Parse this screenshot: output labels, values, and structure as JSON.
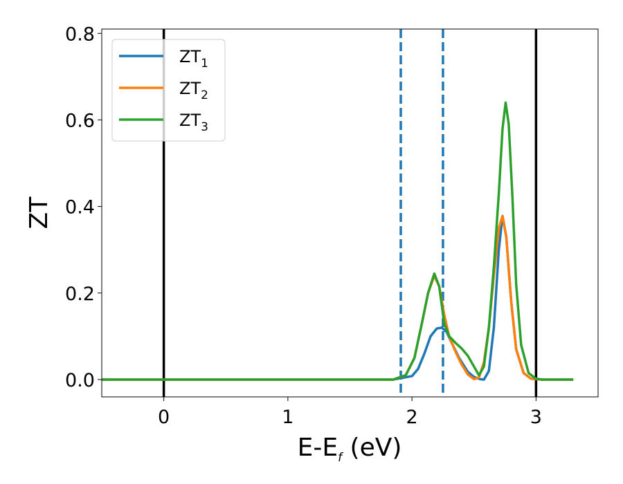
{
  "chart_data": {
    "type": "line",
    "title": "",
    "xlabel": "E-E",
    "xlabel_sub": "f",
    "xlabel_unit": " (eV)",
    "ylabel": "ZT",
    "xlim": [
      -0.5,
      3.5
    ],
    "ylim": [
      -0.04,
      0.81
    ],
    "xticks": [
      0,
      1,
      2,
      3
    ],
    "xtick_labels": [
      "0",
      "1",
      "2",
      "3"
    ],
    "yticks": [
      0.0,
      0.2,
      0.4,
      0.6,
      0.8
    ],
    "ytick_labels": [
      "0.0",
      "0.2",
      "0.4",
      "0.6",
      "0.8"
    ],
    "grid": false,
    "legend_position": "top-left",
    "vertical_lines": [
      {
        "x": 0.0,
        "style": "solid",
        "color": "#000000"
      },
      {
        "x": 3.0,
        "style": "solid",
        "color": "#000000"
      },
      {
        "x": 1.91,
        "style": "dashed",
        "color": "#1f77b4"
      },
      {
        "x": 2.25,
        "style": "dashed",
        "color": "#1f77b4"
      }
    ],
    "series": [
      {
        "name": "ZT",
        "sub": "1",
        "color": "#1f77b4",
        "x": [
          -0.5,
          1.85,
          2.0,
          2.05,
          2.1,
          2.15,
          2.2,
          2.24,
          2.28,
          2.32,
          2.38,
          2.45,
          2.5,
          2.55,
          2.58,
          2.62,
          2.66,
          2.7,
          2.73,
          2.76,
          2.8,
          2.84,
          2.9,
          2.96,
          3.05,
          3.3
        ],
        "y": [
          0.0,
          0.0,
          0.008,
          0.025,
          0.06,
          0.1,
          0.118,
          0.12,
          0.11,
          0.085,
          0.05,
          0.018,
          0.006,
          0.001,
          0.0,
          0.02,
          0.12,
          0.3,
          0.378,
          0.33,
          0.18,
          0.07,
          0.015,
          0.002,
          0.0,
          0.0
        ]
      },
      {
        "name": "ZT",
        "sub": "2",
        "color": "#ff7f0e",
        "x": [
          -0.5,
          1.85,
          1.95,
          2.02,
          2.08,
          2.13,
          2.18,
          2.22,
          2.26,
          2.3,
          2.35,
          2.4,
          2.45,
          2.5,
          2.54,
          2.58,
          2.62,
          2.66,
          2.7,
          2.73,
          2.76,
          2.8,
          2.84,
          2.9,
          2.96,
          3.05,
          3.3
        ],
        "y": [
          0.0,
          0.0,
          0.01,
          0.05,
          0.13,
          0.2,
          0.24,
          0.215,
          0.15,
          0.1,
          0.065,
          0.035,
          0.012,
          0.001,
          0.005,
          0.04,
          0.12,
          0.24,
          0.35,
          0.378,
          0.33,
          0.18,
          0.07,
          0.015,
          0.002,
          0.0,
          0.0
        ]
      },
      {
        "name": "ZT",
        "sub": "3",
        "color": "#2ca02c",
        "x": [
          -0.5,
          1.85,
          1.95,
          2.02,
          2.08,
          2.13,
          2.18,
          2.22,
          2.26,
          2.3,
          2.35,
          2.4,
          2.45,
          2.5,
          2.54,
          2.58,
          2.62,
          2.66,
          2.7,
          2.73,
          2.755,
          2.78,
          2.81,
          2.84,
          2.88,
          2.94,
          3.0,
          3.05,
          3.3
        ],
        "y": [
          0.0,
          0.0,
          0.01,
          0.05,
          0.13,
          0.2,
          0.245,
          0.215,
          0.13,
          0.1,
          0.085,
          0.072,
          0.055,
          0.03,
          0.01,
          0.03,
          0.12,
          0.26,
          0.43,
          0.58,
          0.64,
          0.59,
          0.42,
          0.22,
          0.08,
          0.015,
          0.002,
          0.0,
          0.0
        ]
      }
    ]
  }
}
